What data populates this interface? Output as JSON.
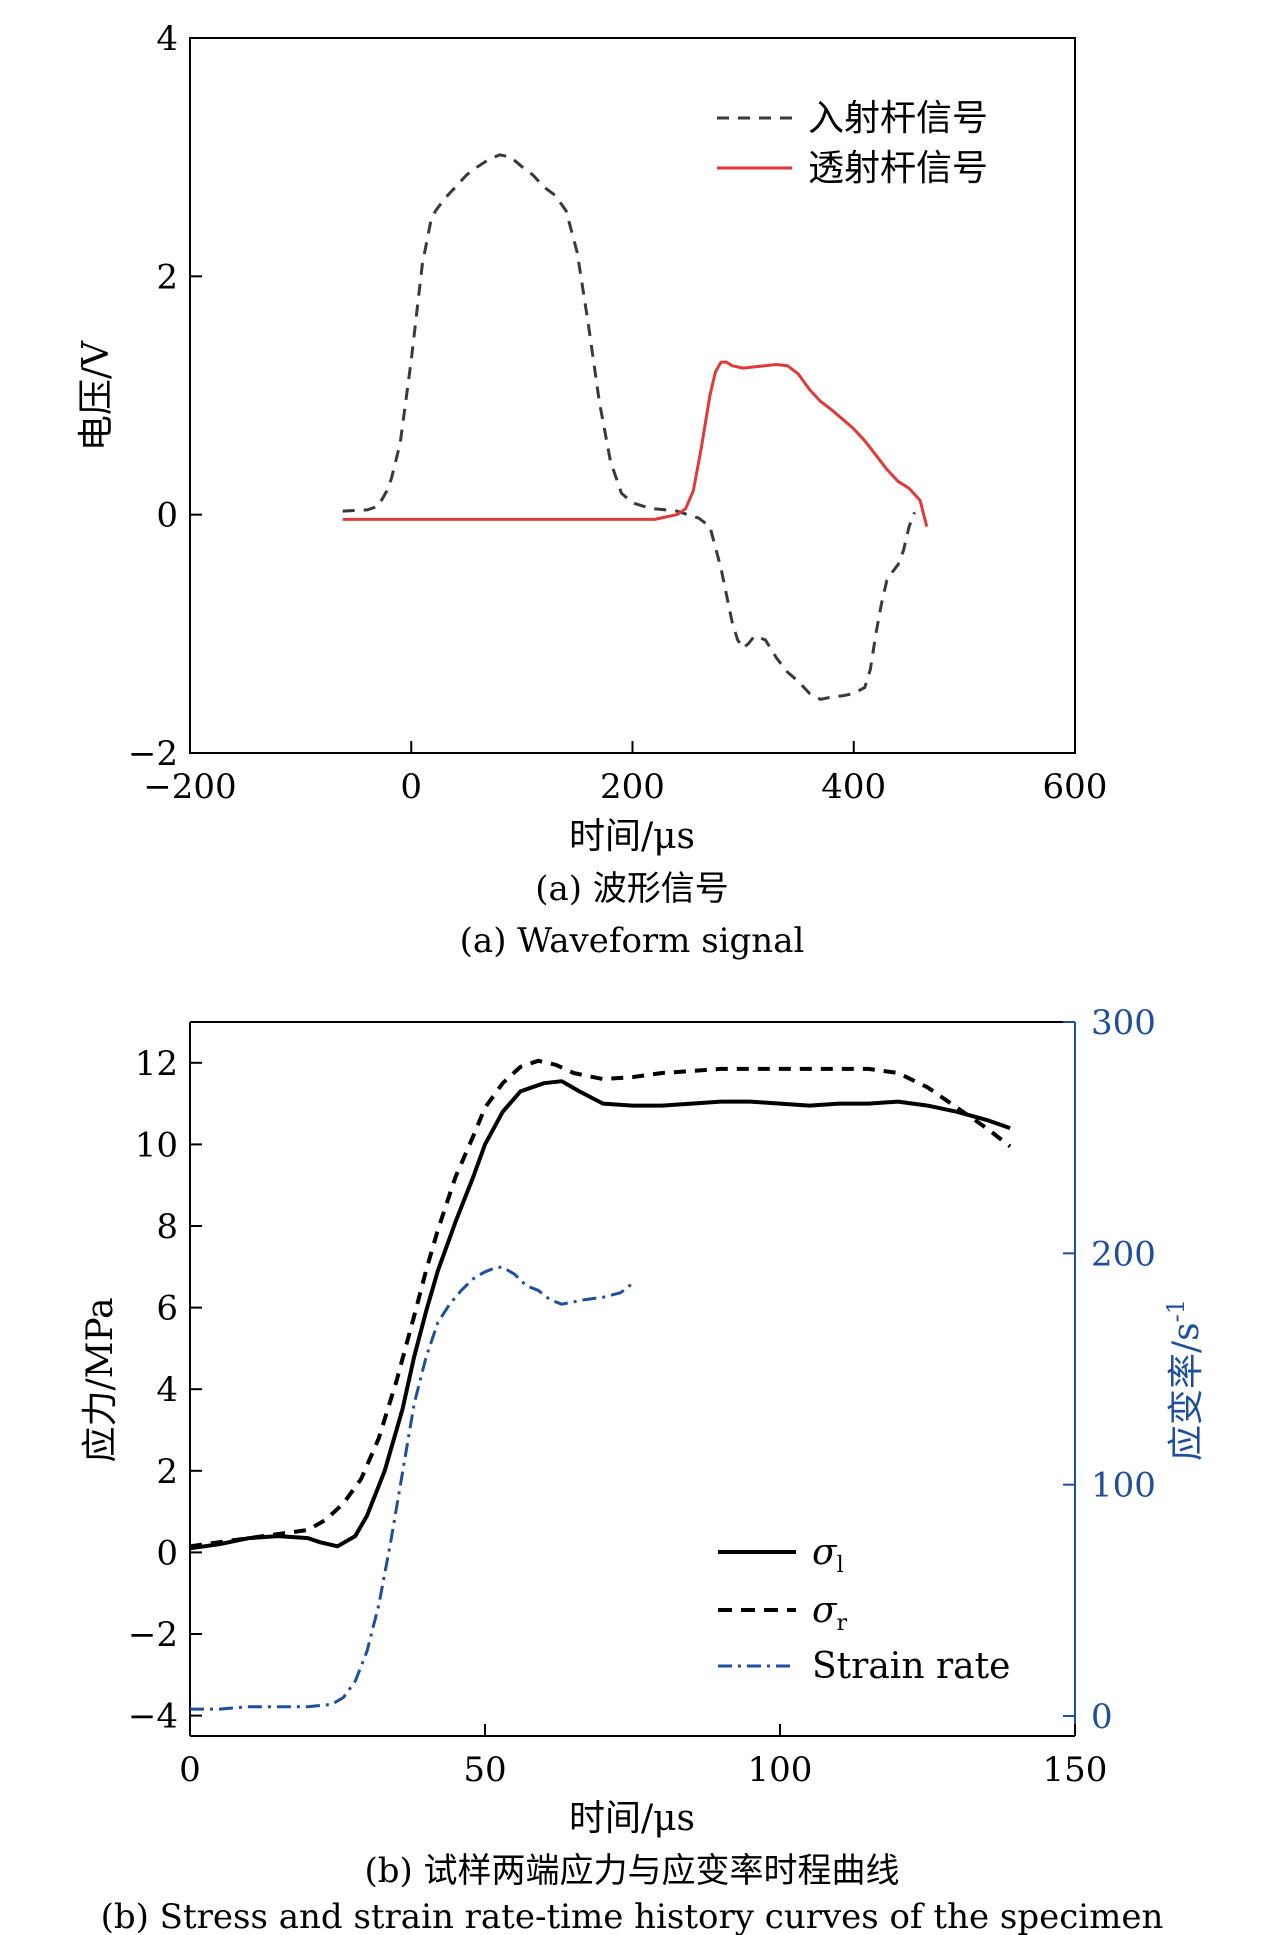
{
  "chart_data": [
    {
      "type": "line",
      "caption_cn": "(a) 波形信号",
      "caption_en": "(a) Waveform signal",
      "xlabel": "时间/μs",
      "ylabel": "电压/V",
      "xlim": [
        -200,
        600
      ],
      "ylim": [
        -2,
        4
      ],
      "xticks": [
        "−200",
        "0",
        "200",
        "400",
        "600"
      ],
      "yticks": [
        "4",
        "2",
        "0",
        "−2"
      ],
      "xtick_values": [
        -200,
        0,
        200,
        400,
        600
      ],
      "ytick_values": [
        4,
        2,
        0,
        -2
      ],
      "legend_position": "top-right",
      "series": [
        {
          "name": "入射杆信号",
          "color": "#3a3a3a",
          "dash": "dashed",
          "x": [
            -62,
            -40,
            -30,
            -22,
            -18,
            -10,
            0,
            10,
            18,
            22,
            30,
            40,
            50,
            60,
            70,
            80,
            90,
            100,
            110,
            120,
            130,
            140,
            150,
            160,
            170,
            180,
            190,
            200,
            210,
            220,
            230,
            240,
            250,
            260,
            270,
            280,
            290,
            295,
            300,
            305,
            310,
            320,
            330,
            340,
            350,
            360,
            370,
            380,
            390,
            400,
            410,
            415,
            420,
            425,
            430,
            435,
            440,
            445,
            450,
            455
          ],
          "y": [
            0.03,
            0.04,
            0.07,
            0.2,
            0.3,
            0.6,
            1.3,
            2.1,
            2.48,
            2.55,
            2.65,
            2.75,
            2.85,
            2.92,
            2.98,
            3.02,
            3.0,
            2.92,
            2.85,
            2.75,
            2.68,
            2.55,
            2.2,
            1.6,
            0.95,
            0.45,
            0.18,
            0.1,
            0.07,
            0.05,
            0.04,
            0.03,
            0.0,
            -0.03,
            -0.1,
            -0.45,
            -0.9,
            -1.05,
            -1.12,
            -1.08,
            -1.02,
            -1.05,
            -1.2,
            -1.32,
            -1.4,
            -1.5,
            -1.55,
            -1.53,
            -1.52,
            -1.5,
            -1.45,
            -1.3,
            -1.0,
            -0.75,
            -0.55,
            -0.48,
            -0.42,
            -0.3,
            -0.1,
            0.02
          ]
        },
        {
          "name": "透射杆信号",
          "color": "#e03a3a",
          "dash": "solid",
          "x": [
            -62,
            0,
            100,
            200,
            220,
            230,
            240,
            248,
            255,
            262,
            270,
            275,
            280,
            285,
            290,
            300,
            310,
            320,
            330,
            340,
            350,
            360,
            370,
            380,
            390,
            400,
            410,
            420,
            430,
            440,
            450,
            460,
            466
          ],
          "y": [
            -0.04,
            -0.04,
            -0.04,
            -0.04,
            -0.04,
            -0.02,
            0.0,
            0.05,
            0.2,
            0.55,
            1.0,
            1.2,
            1.28,
            1.28,
            1.25,
            1.23,
            1.24,
            1.25,
            1.26,
            1.25,
            1.18,
            1.05,
            0.95,
            0.88,
            0.8,
            0.72,
            0.62,
            0.5,
            0.38,
            0.28,
            0.22,
            0.12,
            -0.1
          ]
        }
      ]
    },
    {
      "type": "line",
      "caption_cn": "(b) 试样两端应力与应变率时程曲线",
      "caption_en": "(b) Stress and strain rate-time history curves of the specimen",
      "xlabel": "时间/μs",
      "ylabel": "应力/MPa",
      "y2label": "应变率/s",
      "y2label_sup": "-1",
      "xlim": [
        0,
        150
      ],
      "ylim": [
        -4.5,
        13
      ],
      "y2lim": [
        0,
        300
      ],
      "xticks": [
        "0",
        "50",
        "100",
        "150"
      ],
      "yticks": [
        "12",
        "10",
        "8",
        "6",
        "4",
        "2",
        "0",
        "−2",
        "−4"
      ],
      "y2ticks": [
        "300",
        "200",
        "100",
        "0"
      ],
      "xtick_values": [
        0,
        50,
        100,
        150
      ],
      "ytick_values": [
        12,
        10,
        8,
        6,
        4,
        2,
        0,
        -2,
        -4
      ],
      "y2tick_values": [
        300,
        200,
        100,
        0
      ],
      "legend_position": "bottom-right",
      "series": [
        {
          "name": "σ",
          "sub": "l",
          "color": "#000000",
          "dash": "solid",
          "axis": "left",
          "x": [
            0,
            5,
            10,
            15,
            20,
            22,
            25,
            28,
            30,
            33,
            36,
            38,
            40,
            42,
            45,
            48,
            50,
            53,
            56,
            60,
            63,
            66,
            70,
            75,
            80,
            85,
            90,
            95,
            100,
            105,
            110,
            115,
            120,
            125,
            130,
            135,
            139
          ],
          "y": [
            0.1,
            0.2,
            0.35,
            0.4,
            0.35,
            0.25,
            0.15,
            0.4,
            0.9,
            2.0,
            3.5,
            4.8,
            5.9,
            6.9,
            8.1,
            9.2,
            10.0,
            10.8,
            11.3,
            11.5,
            11.55,
            11.3,
            11.0,
            10.95,
            10.95,
            11.0,
            11.05,
            11.05,
            11.0,
            10.95,
            11.0,
            11.0,
            11.05,
            10.95,
            10.8,
            10.6,
            10.4
          ]
        },
        {
          "name": "σ",
          "sub": "r",
          "color": "#000000",
          "dash": "dashed",
          "axis": "left",
          "x": [
            0,
            5,
            10,
            15,
            20,
            23,
            26,
            29,
            32,
            35,
            38,
            40,
            42,
            45,
            48,
            50,
            53,
            56,
            59,
            62,
            65,
            70,
            75,
            80,
            85,
            90,
            95,
            100,
            105,
            110,
            115,
            120,
            125,
            130,
            135,
            139
          ],
          "y": [
            0.15,
            0.25,
            0.35,
            0.45,
            0.55,
            0.8,
            1.2,
            1.8,
            2.8,
            4.2,
            5.8,
            6.9,
            7.9,
            9.2,
            10.2,
            10.9,
            11.5,
            11.9,
            12.05,
            11.95,
            11.75,
            11.6,
            11.65,
            11.75,
            11.8,
            11.85,
            11.85,
            11.85,
            11.85,
            11.85,
            11.85,
            11.75,
            11.4,
            10.9,
            10.4,
            9.95
          ]
        },
        {
          "name": "Strain rate",
          "color": "#1f4e9c",
          "dash": "dashdot",
          "axis": "right",
          "x": [
            0,
            5,
            10,
            15,
            20,
            24,
            26,
            28,
            30,
            32,
            34,
            36,
            38,
            40,
            42,
            44,
            46,
            48,
            50,
            52,
            53,
            55,
            57,
            59,
            61,
            63,
            65,
            67,
            70,
            73,
            75
          ],
          "y": [
            3,
            3,
            4,
            4,
            4,
            5,
            8,
            15,
            28,
            48,
            75,
            105,
            135,
            155,
            170,
            178,
            184,
            189,
            192,
            194,
            194,
            191,
            186,
            184,
            180,
            178,
            179,
            180,
            181,
            183,
            187
          ]
        }
      ]
    }
  ]
}
